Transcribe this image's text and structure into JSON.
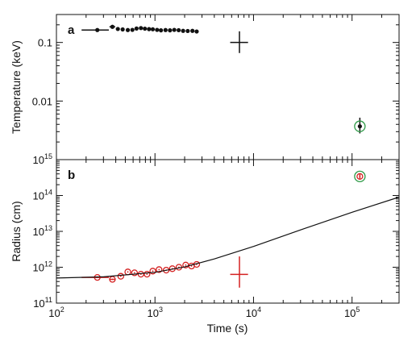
{
  "chart_data": [
    {
      "type": "scatter",
      "panel_label": "a",
      "ylabel": "Temperature (keV)",
      "xlabel": "",
      "xscale": "log",
      "yscale": "log",
      "xlim": [
        100,
        300000
      ],
      "ylim": [
        0.001,
        0.3
      ],
      "ytick_labels": [
        {
          "value": 0.1,
          "label": "0.1"
        },
        {
          "value": 0.01,
          "label": "0.01"
        }
      ],
      "series": [
        {
          "color": "#111111",
          "marker": "filled-circle",
          "points": [
            {
              "x": 260,
              "y": 0.163,
              "xerr": [
                180,
                340
              ]
            },
            {
              "x": 370,
              "y": 0.185,
              "xerr": [
                345,
                395
              ]
            },
            {
              "x": 420,
              "y": 0.17
            },
            {
              "x": 470,
              "y": 0.167
            },
            {
              "x": 530,
              "y": 0.163
            },
            {
              "x": 590,
              "y": 0.164
            },
            {
              "x": 650,
              "y": 0.173
            },
            {
              "x": 720,
              "y": 0.176
            },
            {
              "x": 790,
              "y": 0.172
            },
            {
              "x": 870,
              "y": 0.169
            },
            {
              "x": 950,
              "y": 0.168
            },
            {
              "x": 1050,
              "y": 0.164
            },
            {
              "x": 1150,
              "y": 0.161
            },
            {
              "x": 1280,
              "y": 0.163
            },
            {
              "x": 1420,
              "y": 0.161
            },
            {
              "x": 1570,
              "y": 0.164
            },
            {
              "x": 1740,
              "y": 0.162
            },
            {
              "x": 1930,
              "y": 0.158
            },
            {
              "x": 2150,
              "y": 0.157
            },
            {
              "x": 2400,
              "y": 0.158
            },
            {
              "x": 2650,
              "y": 0.154
            },
            {
              "x": 7200,
              "y": 0.1,
              "xerr": [
                5800,
                8800
              ],
              "yerr": [
                0.066,
                0.155
              ],
              "marker": "none"
            },
            {
              "x": 120000,
              "y": 0.0037,
              "yerr": [
                0.0028,
                0.0052
              ],
              "highlight_color": "#2e9a47"
            }
          ]
        }
      ]
    },
    {
      "type": "scatter",
      "panel_label": "b",
      "ylabel": "Radius (cm)",
      "xlabel": "Time (s)",
      "xscale": "log",
      "yscale": "log",
      "xlim": [
        100,
        300000
      ],
      "ylim": [
        100000000000,
        1000000000000000
      ],
      "ytick_labels": [
        {
          "value": 100000000000,
          "base": "10",
          "exp": "11"
        },
        {
          "value": 1000000000000,
          "base": "10",
          "exp": "12"
        },
        {
          "value": 10000000000000,
          "base": "10",
          "exp": "13"
        },
        {
          "value": 100000000000000,
          "base": "10",
          "exp": "14"
        },
        {
          "value": 1000000000000000,
          "base": "10",
          "exp": "15"
        }
      ],
      "xtick_labels": [
        {
          "value": 100,
          "base": "10",
          "exp": "2"
        },
        {
          "value": 1000,
          "base": "10",
          "exp": "3"
        },
        {
          "value": 10000,
          "base": "10",
          "exp": "4"
        },
        {
          "value": 100000,
          "base": "10",
          "exp": "5"
        }
      ],
      "series": [
        {
          "color": "#d42020",
          "marker": "open-circle",
          "points": [
            {
              "x": 260,
              "y": 520000000000,
              "xerr": [
                180,
                340
              ]
            },
            {
              "x": 370,
              "y": 460000000000,
              "xerr": [
                345,
                395
              ]
            },
            {
              "x": 450,
              "y": 560000000000
            },
            {
              "x": 530,
              "y": 740000000000
            },
            {
              "x": 620,
              "y": 700000000000
            },
            {
              "x": 720,
              "y": 640000000000
            },
            {
              "x": 830,
              "y": 640000000000
            },
            {
              "x": 950,
              "y": 780000000000
            },
            {
              "x": 1100,
              "y": 860000000000
            },
            {
              "x": 1300,
              "y": 830000000000
            },
            {
              "x": 1500,
              "y": 910000000000
            },
            {
              "x": 1750,
              "y": 1000000000000
            },
            {
              "x": 2050,
              "y": 1150000000000
            },
            {
              "x": 2350,
              "y": 1080000000000
            },
            {
              "x": 2650,
              "y": 1200000000000
            },
            {
              "x": 7200,
              "y": 630000000000,
              "xerr": [
                5800,
                8800
              ],
              "yerr": [
                270000000000,
                2000000000000
              ],
              "marker": "none"
            },
            {
              "x": 120000,
              "y": 340000000000000,
              "yerr": [
                280000000000000,
                410000000000000
              ],
              "highlight_color": "#2e9a47"
            }
          ]
        },
        {
          "color": "#111111",
          "style": "line",
          "points": [
            {
              "x": 100,
              "y": 500000000000
            },
            {
              "x": 300,
              "y": 540000000000
            },
            {
              "x": 1000,
              "y": 720000000000
            },
            {
              "x": 2000,
              "y": 1020000000000
            },
            {
              "x": 4000,
              "y": 1700000000000
            },
            {
              "x": 10000,
              "y": 3800000000000
            },
            {
              "x": 30000,
              "y": 11000000000000
            },
            {
              "x": 100000,
              "y": 34000000000000
            },
            {
              "x": 300000,
              "y": 90000000000000
            }
          ]
        }
      ]
    }
  ]
}
